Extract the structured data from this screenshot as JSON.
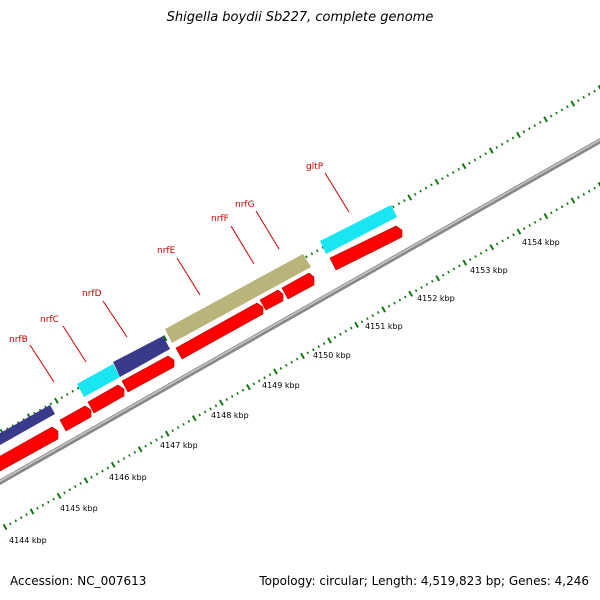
{
  "title": "Shigella boydii Sb227, complete genome",
  "footer": {
    "accession": "Accession: NC_007613",
    "summary": "Topology: circular; Length: 4,519,823 bp; Genes: 4,246"
  },
  "colors": {
    "backbone": "#888888",
    "backbone_light": "#c8c8c8",
    "cds": "#ff0000",
    "cds_dark": "#b00000",
    "tick": "#117711",
    "label": "#cc0000",
    "feature_purple": "#3a3a8a",
    "feature_cyan": "#19e6f0",
    "feature_olive": "#b8b47a"
  },
  "gene_labels": [
    "nrfB",
    "nrfC",
    "nrfD",
    "nrfE",
    "nrfF",
    "nrfG",
    "gltP"
  ],
  "scale_labels": [
    "4144 kbp",
    "4145 kbp",
    "4146 kbp",
    "4147 kbp",
    "4148 kbp",
    "4149 kbp",
    "4150 kbp",
    "4151 kbp",
    "4152 kbp",
    "4153 kbp",
    "4154 kbp"
  ]
}
